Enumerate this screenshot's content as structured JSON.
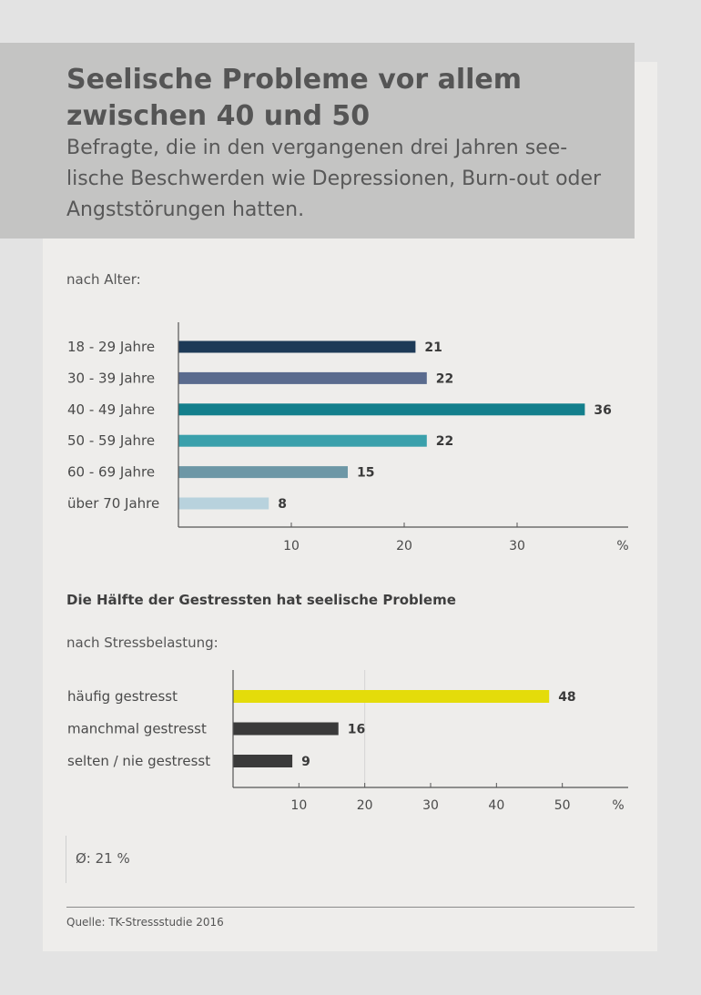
{
  "title": "Seelische Probleme vor allem zwischen 40 und 50",
  "subtitle": "Befragte, die in den vergangenen drei Jahren see-lische Beschwerden wie Depressionen, Burn-out oder Angststörungen hatten.",
  "average": "Ø: 21 %",
  "source": "Quelle: TK-Stressstudie 2016",
  "chart_data": [
    {
      "type": "bar",
      "orientation": "horizontal",
      "subtitle": "nach Alter:",
      "categories": [
        "18 - 29 Jahre",
        "30 - 39 Jahre",
        "40 - 49 Jahre",
        "50 - 59 Jahre",
        "60 - 69 Jahre",
        "über 70 Jahre"
      ],
      "values": [
        21,
        22,
        36,
        22,
        15,
        8
      ],
      "value_labels": [
        "21",
        "22",
        "36",
        "22",
        "15",
        "8"
      ],
      "colors": [
        "#1d3a57",
        "#5a6b8e",
        "#137f8c",
        "#3aa0ab",
        "#6d97a6",
        "#b8d2dd"
      ],
      "xticks": [
        "10",
        "20",
        "30"
      ],
      "xtick_values": [
        10,
        20,
        30
      ],
      "xunit": "%",
      "xlim": [
        0,
        40
      ],
      "grid": false
    },
    {
      "type": "bar",
      "orientation": "horizontal",
      "title": "Die Hälfte der Gestressten hat seelische Probleme",
      "subtitle": "nach Stressbelastung:",
      "categories": [
        "häufig gestresst",
        "manchmal gestresst",
        "selten / nie gestresst"
      ],
      "values": [
        48,
        16,
        9
      ],
      "value_labels": [
        "48",
        "16",
        "9"
      ],
      "colors": [
        "#e4dc0a",
        "#3a3a3a",
        "#3a3a3a"
      ],
      "xticks": [
        "10",
        "20",
        "30",
        "40",
        "50"
      ],
      "xtick_values": [
        10,
        20,
        30,
        40,
        50
      ],
      "xunit": "%",
      "xlim": [
        0,
        60
      ],
      "reference_value": 20,
      "grid": false
    }
  ]
}
